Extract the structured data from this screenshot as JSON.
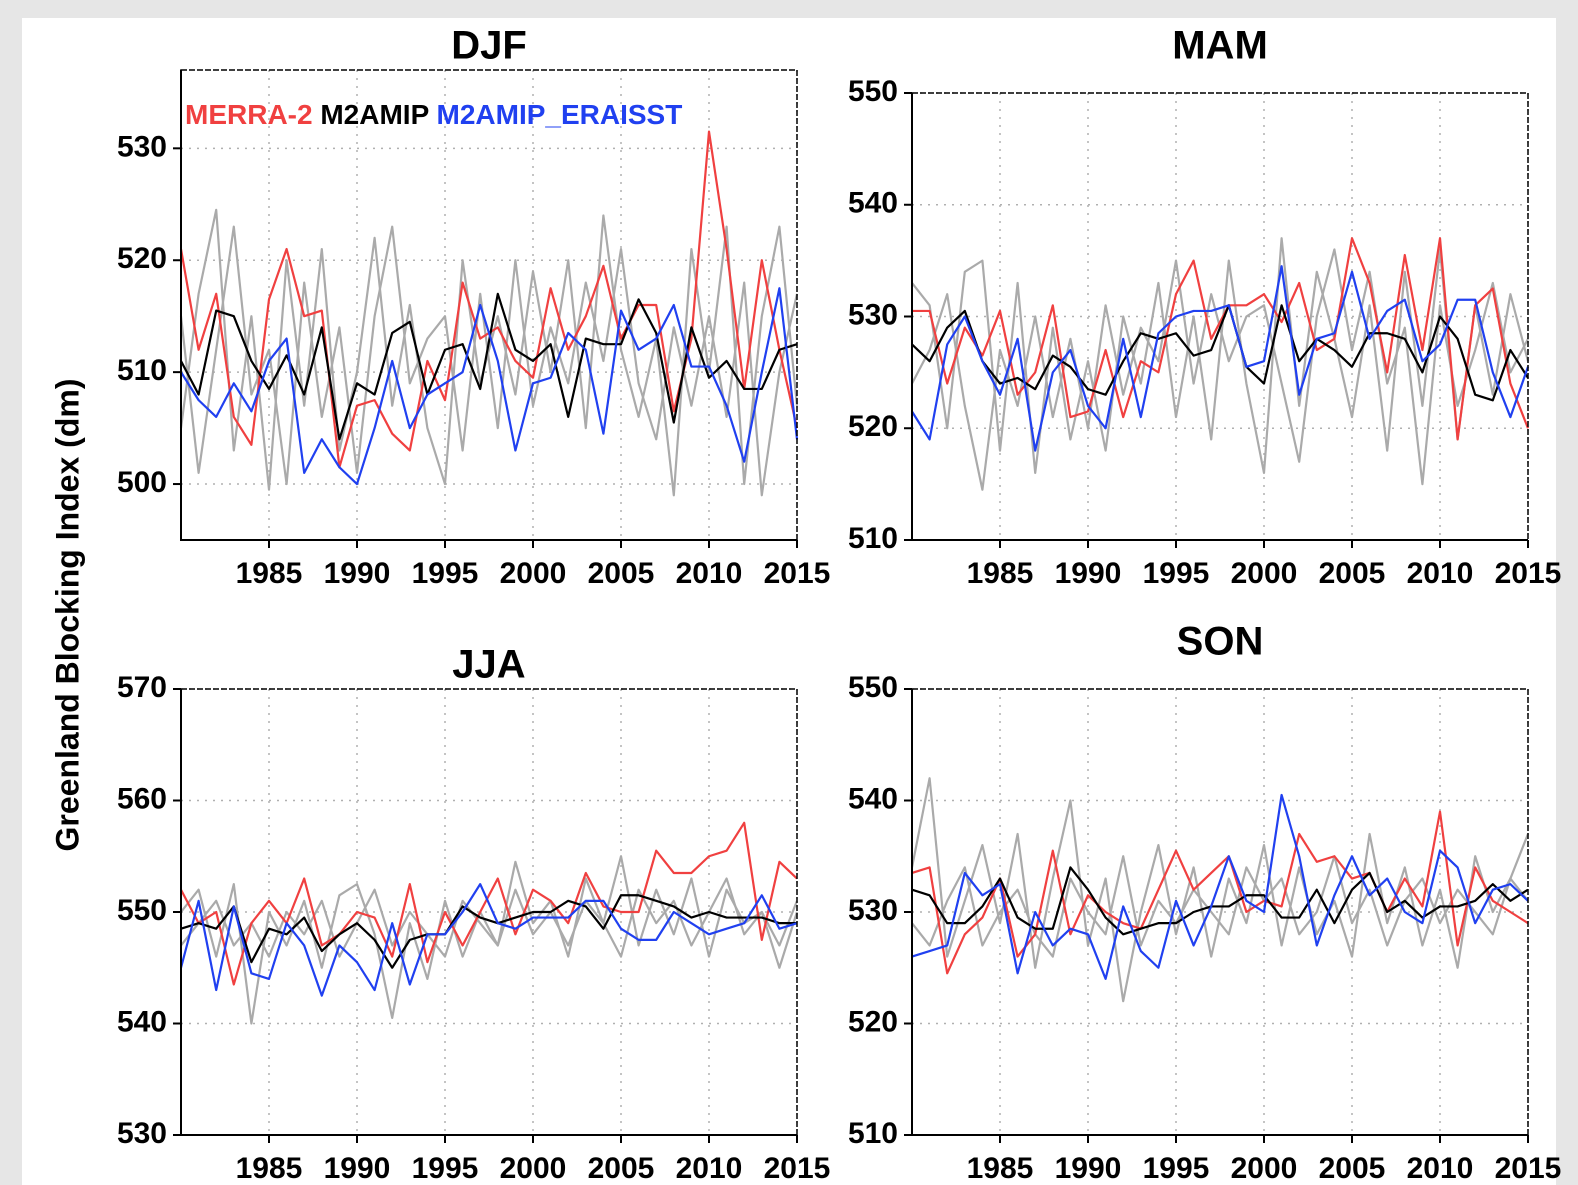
{
  "chart_data": [
    {
      "type": "line",
      "title": "DJF",
      "ylabel": "Greenland Blocking Index (dm)",
      "legend": "upper left",
      "grid": true,
      "x": [
        1980,
        1981,
        1982,
        1983,
        1984,
        1985,
        1986,
        1987,
        1988,
        1989,
        1990,
        1991,
        1992,
        1993,
        1994,
        1995,
        1996,
        1997,
        1998,
        1999,
        2000,
        2001,
        2002,
        2003,
        2004,
        2005,
        2006,
        2007,
        2008,
        2009,
        2010,
        2011,
        2012,
        2013,
        2014,
        2015
      ],
      "xlim": [
        1980,
        2015
      ],
      "xticks": [
        1985,
        1990,
        1995,
        2000,
        2005,
        2010,
        2015
      ],
      "ylim": [
        495,
        537
      ],
      "yticks": [
        500,
        510,
        520,
        530
      ],
      "series": [
        {
          "color": "#aaaaaa",
          "values": [
            505,
            517,
            524.5,
            503,
            515,
            499.5,
            520,
            507,
            521,
            503,
            510,
            522,
            507,
            516,
            505,
            500,
            520,
            509,
            515,
            508,
            519,
            510,
            520,
            505,
            524,
            512,
            506,
            513,
            499,
            521,
            510,
            523,
            500,
            515,
            523,
            507
          ]
        },
        {
          "color": "#aaaaaa",
          "values": [
            515,
            501,
            512,
            523,
            508,
            512,
            500,
            518,
            506,
            514,
            501,
            515,
            523,
            509,
            513,
            515,
            503,
            517,
            505,
            520,
            507,
            514,
            509,
            518,
            511,
            521,
            509,
            504,
            514,
            507,
            515,
            506,
            518,
            499,
            510,
            517
          ]
        },
        {
          "name": "MERRA-2",
          "color": "#f04040",
          "values": [
            521,
            512,
            517,
            506,
            503.5,
            516.5,
            521,
            515,
            515.5,
            501.5,
            507,
            507.5,
            504.5,
            503,
            511,
            507.5,
            518,
            513,
            514,
            511,
            509.5,
            517.5,
            512,
            515,
            519.5,
            513,
            516,
            516,
            506.5,
            513,
            531.5,
            521,
            508.5,
            520,
            512,
            505
          ]
        },
        {
          "name": "M2AMIP",
          "color": "#000000",
          "values": [
            511,
            508,
            515.5,
            515,
            511,
            508.5,
            511.5,
            508,
            514,
            504,
            509,
            508,
            513.5,
            514.5,
            508,
            512,
            512.5,
            508.5,
            517,
            512,
            511,
            512.5,
            506,
            513,
            512.5,
            512.5,
            516.5,
            513.5,
            505.5,
            514,
            509.5,
            511,
            508.5,
            508.5,
            512,
            512.5
          ]
        },
        {
          "name": "M2AMIP_ERAISST",
          "color": "#2040f0",
          "values": [
            510,
            507.5,
            506,
            509,
            506.5,
            511,
            513,
            501,
            504,
            501.5,
            500,
            505,
            511,
            505,
            508,
            509,
            510,
            516,
            511,
            503,
            509,
            509.5,
            513.5,
            512,
            504.5,
            515.5,
            512,
            513,
            516,
            510.5,
            510.5,
            507,
            502,
            510,
            517.5,
            504
          ]
        }
      ]
    },
    {
      "type": "line",
      "title": "MAM",
      "grid": true,
      "x": [
        1980,
        1981,
        1982,
        1983,
        1984,
        1985,
        1986,
        1987,
        1988,
        1989,
        1990,
        1991,
        1992,
        1993,
        1994,
        1995,
        1996,
        1997,
        1998,
        1999,
        2000,
        2001,
        2002,
        2003,
        2004,
        2005,
        2006,
        2007,
        2008,
        2009,
        2010,
        2011,
        2012,
        2013,
        2014,
        2015
      ],
      "xlim": [
        1980,
        2015
      ],
      "xticks": [
        1985,
        1990,
        1995,
        2000,
        2005,
        2010,
        2015
      ],
      "ylim": [
        510,
        550
      ],
      "yticks": [
        510,
        520,
        530,
        540,
        550
      ],
      "series": [
        {
          "color": "#aaaaaa",
          "values": [
            533,
            531,
            520,
            534,
            535,
            518,
            533,
            516,
            529,
            519,
            526,
            518,
            530,
            524,
            533,
            521,
            530,
            519,
            535,
            524,
            516,
            537,
            522,
            534,
            528,
            521,
            531,
            518,
            534,
            522,
            536,
            519,
            531,
            523,
            532,
            526
          ]
        },
        {
          "color": "#aaaaaa",
          "values": [
            524,
            527,
            532,
            522,
            514.5,
            527,
            522,
            530,
            521,
            528,
            520,
            531,
            523,
            529,
            526,
            535,
            524,
            532,
            526,
            530,
            531,
            524,
            517,
            530,
            536,
            527,
            534,
            524,
            529,
            515,
            531,
            522,
            527,
            533,
            525,
            528
          ]
        },
        {
          "color": "#f04040",
          "values": [
            530.5,
            530.5,
            524,
            529,
            526.5,
            530.5,
            523,
            525,
            531,
            521,
            521.5,
            527,
            521,
            526,
            525,
            532,
            535,
            528,
            531,
            531,
            532,
            529.5,
            533,
            527,
            528,
            537,
            533,
            525,
            535.5,
            527,
            537,
            519,
            531,
            532.5,
            524,
            520
          ]
        },
        {
          "color": "#000000",
          "values": [
            527.5,
            526,
            529,
            530.5,
            526,
            524,
            524.5,
            523.5,
            526.5,
            525.5,
            523.5,
            523,
            526,
            528.5,
            528,
            528.5,
            526.5,
            527,
            531,
            525.5,
            524,
            531,
            526,
            528,
            527,
            525.5,
            528.5,
            528.5,
            528,
            525,
            530,
            528,
            523,
            522.5,
            527,
            524.5
          ]
        },
        {
          "color": "#2040f0",
          "values": [
            521.5,
            519,
            527.5,
            530,
            526,
            523,
            528,
            518,
            525,
            527,
            522,
            520,
            528,
            521,
            528.5,
            530,
            530.5,
            530.5,
            531,
            525.5,
            526,
            534.5,
            523,
            528,
            528.5,
            534,
            528,
            530.5,
            531.5,
            526,
            527.5,
            531.5,
            531.5,
            525,
            521,
            525.5
          ]
        }
      ]
    },
    {
      "type": "line",
      "title": "JJA",
      "grid": true,
      "x": [
        1980,
        1981,
        1982,
        1983,
        1984,
        1985,
        1986,
        1987,
        1988,
        1989,
        1990,
        1991,
        1992,
        1993,
        1994,
        1995,
        1996,
        1997,
        1998,
        1999,
        2000,
        2001,
        2002,
        2003,
        2004,
        2005,
        2006,
        2007,
        2008,
        2009,
        2010,
        2011,
        2012,
        2013,
        2014,
        2015
      ],
      "xlim": [
        1980,
        2015
      ],
      "xticks": [
        1985,
        1990,
        1995,
        2000,
        2005,
        2010,
        2015
      ],
      "ylim": [
        530,
        570
      ],
      "yticks": [
        530,
        540,
        550,
        560,
        570
      ],
      "series": [
        {
          "color": "#aaaaaa",
          "values": [
            550,
            552,
            546,
            552.5,
            540,
            550,
            547,
            551,
            545,
            551.5,
            552.5,
            548,
            540.5,
            549,
            544,
            551,
            546,
            550,
            547,
            554.5,
            549,
            551,
            546,
            553,
            549,
            555,
            547,
            552,
            548,
            553,
            546,
            552,
            549,
            550,
            545,
            550
          ]
        },
        {
          "color": "#aaaaaa",
          "values": [
            547,
            549,
            551,
            547,
            549,
            546,
            550,
            548,
            551,
            546,
            549,
            552,
            547,
            550,
            548,
            546,
            551,
            549,
            547,
            552,
            548,
            550,
            547,
            551,
            549,
            546,
            552,
            549,
            551,
            547,
            550,
            553,
            548,
            550,
            547,
            551
          ]
        },
        {
          "color": "#f04040",
          "values": [
            552,
            549,
            550,
            543.5,
            549,
            551,
            549,
            553,
            547,
            548,
            550,
            549.5,
            546,
            552.5,
            545.5,
            550,
            547,
            550,
            553,
            548,
            552,
            551,
            549,
            553.5,
            550.5,
            550,
            550,
            555.5,
            553.5,
            553.5,
            555,
            555.5,
            558,
            547.5,
            554.5,
            553
          ]
        },
        {
          "color": "#000000",
          "values": [
            548.5,
            549,
            548.5,
            550.5,
            545.5,
            548.5,
            548,
            549.5,
            546.5,
            548,
            549,
            547.5,
            545,
            547.5,
            548,
            548,
            550.5,
            549.5,
            549,
            549.5,
            550,
            550,
            551,
            550.5,
            548.5,
            551.5,
            551.5,
            551,
            550.5,
            549.5,
            550,
            549.5,
            549.5,
            549.5,
            549,
            549
          ]
        },
        {
          "color": "#2040f0",
          "values": [
            545,
            551,
            543,
            550.5,
            544.5,
            544,
            549,
            547,
            542.5,
            547,
            545.5,
            543,
            549,
            543.5,
            548,
            548,
            550,
            552.5,
            549,
            548.5,
            549.5,
            549.5,
            549.5,
            551,
            551,
            548.5,
            547.5,
            547.5,
            550,
            549,
            548,
            548.5,
            549,
            551.5,
            548.5,
            549
          ]
        }
      ]
    },
    {
      "type": "line",
      "title": "SON",
      "grid": true,
      "x": [
        1980,
        1981,
        1982,
        1983,
        1984,
        1985,
        1986,
        1987,
        1988,
        1989,
        1990,
        1991,
        1992,
        1993,
        1994,
        1995,
        1996,
        1997,
        1998,
        1999,
        2000,
        2001,
        2002,
        2003,
        2004,
        2005,
        2006,
        2007,
        2008,
        2009,
        2010,
        2011,
        2012,
        2013,
        2014,
        2015
      ],
      "xlim": [
        1980,
        2015
      ],
      "xticks": [
        1985,
        1990,
        1995,
        2000,
        2005,
        2010,
        2015
      ],
      "ylim": [
        510,
        550
      ],
      "yticks": [
        510,
        520,
        530,
        540,
        550
      ],
      "series": [
        {
          "color": "#aaaaaa",
          "values": [
            534,
            542,
            526,
            531,
            536,
            529,
            537,
            525,
            533,
            540,
            527,
            533,
            522,
            530,
            536,
            528,
            534,
            526,
            533,
            529,
            536,
            527,
            534,
            528,
            531,
            526,
            537,
            529,
            534,
            527,
            532,
            525,
            535,
            530,
            533,
            537
          ]
        },
        {
          "color": "#aaaaaa",
          "values": [
            529,
            527,
            531,
            534,
            527,
            530,
            532,
            528,
            526,
            533,
            530,
            528,
            535,
            527,
            531,
            529,
            532,
            530,
            528,
            534,
            531,
            533,
            528,
            530,
            535,
            529,
            532,
            527,
            531,
            533,
            529,
            532,
            530,
            528,
            533,
            531
          ]
        },
        {
          "color": "#f04040",
          "values": [
            533.5,
            534,
            524.5,
            528,
            529.5,
            533,
            526,
            528,
            535.5,
            528,
            531.5,
            530,
            529,
            528.5,
            532,
            535.5,
            532,
            533.5,
            535,
            530,
            531,
            530.5,
            537,
            534.5,
            535,
            533,
            533.5,
            530,
            533,
            530.5,
            539,
            527,
            534,
            531,
            530,
            529
          ]
        },
        {
          "color": "#000000",
          "values": [
            532,
            531.5,
            529,
            529,
            530.5,
            533,
            529.5,
            528.5,
            528.5,
            534,
            532,
            529.5,
            528,
            528.5,
            529,
            529,
            530,
            530.5,
            530.5,
            531.5,
            531.5,
            529.5,
            529.5,
            532,
            529,
            532,
            533.5,
            530,
            531,
            529.5,
            530.5,
            530.5,
            531,
            532.5,
            531,
            532
          ]
        },
        {
          "color": "#2040f0",
          "values": [
            526,
            526.5,
            527,
            533.5,
            531.5,
            532.5,
            524.5,
            530,
            527,
            528.5,
            528,
            524,
            530.5,
            526.5,
            525,
            531,
            527,
            530.5,
            535,
            531,
            530,
            540.5,
            535,
            527,
            531.5,
            535,
            531.5,
            533,
            530,
            529,
            535.5,
            534,
            529,
            532,
            532.5,
            531
          ]
        }
      ]
    }
  ]
}
